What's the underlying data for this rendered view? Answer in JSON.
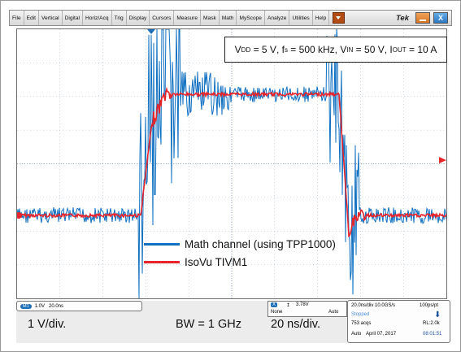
{
  "menubar": {
    "items": [
      "File",
      "Edit",
      "Vertical",
      "Digital",
      "Horiz/Acq",
      "Trig",
      "Display",
      "Cursors",
      "Measure",
      "Mask",
      "Math",
      "MyScope",
      "Analyze",
      "Utilities",
      "Help"
    ],
    "brand": "Tek"
  },
  "annotation": {
    "vdd": "5 V",
    "fs": "500 kHz",
    "vin": "50 V",
    "iout": "10 A"
  },
  "legend": [
    {
      "label": "Math channel (using TPP1000)",
      "color": "#0f6fc0"
    },
    {
      "label": "IsoVu TIVM1",
      "color": "#e8242b"
    }
  ],
  "channel": {
    "badge": "M1",
    "scale": "1.0V",
    "time": "20.0ns"
  },
  "labels": {
    "vdiv": "1 V/div.",
    "bw": "BW = 1 GHz",
    "nsdiv": "20 ns/div."
  },
  "trigger": {
    "src": "X",
    "level": "3.78V",
    "mode1": "None",
    "mode2": "Auto"
  },
  "acquisition": {
    "line1": "20.0ns/div  10.0GS/s",
    "ptval": "100ps/pt",
    "state": "Stopped",
    "acqs": "753 acqs",
    "rl": "RL:2.0k",
    "mode": "Auto",
    "date": "April 07, 2017",
    "time": "08:01:51"
  },
  "colors": {
    "math": "#0f6fc0",
    "isovu": "#e8242b",
    "grid": "#8aa0b8",
    "accent": "#b24b14"
  }
}
